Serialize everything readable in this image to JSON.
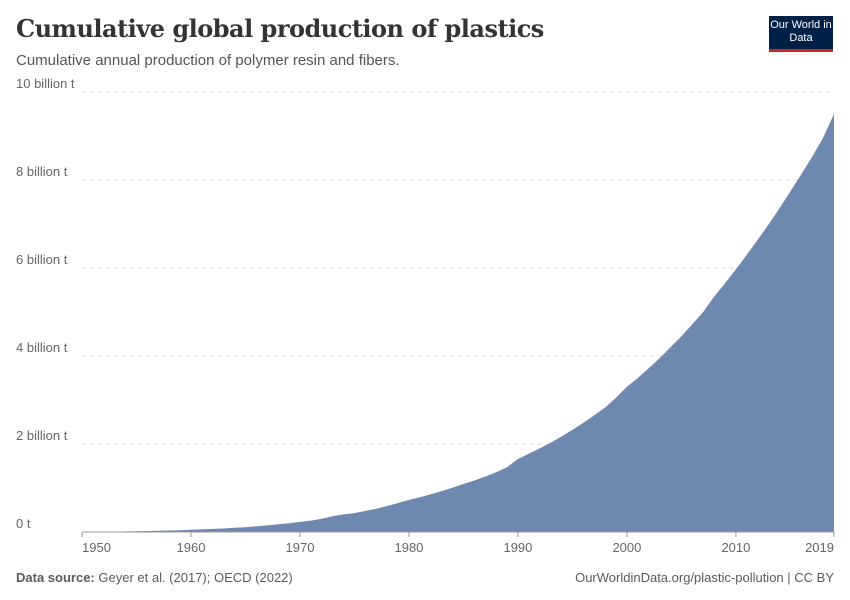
{
  "header": {
    "title": "Cumulative global production of plastics",
    "subtitle": "Cumulative annual production of polymer resin and fibers.",
    "logo_text": "Our World in Data"
  },
  "footer": {
    "source_label": "Data source:",
    "source": "Geyer et al. (2017); OECD (2022)",
    "link": "OurWorldinData.org/plastic-pollution | CC BY"
  },
  "chart_data": {
    "type": "area",
    "title": "Cumulative global production of plastics",
    "xlabel": "",
    "ylabel": "",
    "unit": "billion t",
    "xlim": [
      1950,
      2019
    ],
    "ylim": [
      0,
      10
    ],
    "grid": "horizontal dashed",
    "color": "#6f88b0",
    "y_ticks": [
      {
        "v": 0,
        "label": "0 t"
      },
      {
        "v": 2,
        "label": "2 billion t"
      },
      {
        "v": 4,
        "label": "4 billion t"
      },
      {
        "v": 6,
        "label": "6 billion t"
      },
      {
        "v": 8,
        "label": "8 billion t"
      },
      {
        "v": 10,
        "label": "10 billion t"
      }
    ],
    "x_ticks": [
      1950,
      1960,
      1970,
      1980,
      1990,
      2000,
      2010,
      2019
    ],
    "x": [
      1950,
      1951,
      1952,
      1953,
      1954,
      1955,
      1956,
      1957,
      1958,
      1959,
      1960,
      1961,
      1962,
      1963,
      1964,
      1965,
      1966,
      1967,
      1968,
      1969,
      1970,
      1971,
      1972,
      1973,
      1974,
      1975,
      1976,
      1977,
      1978,
      1979,
      1980,
      1981,
      1982,
      1983,
      1984,
      1985,
      1986,
      1987,
      1988,
      1989,
      1990,
      1991,
      1992,
      1993,
      1994,
      1995,
      1996,
      1997,
      1998,
      1999,
      2000,
      2001,
      2002,
      2003,
      2004,
      2005,
      2006,
      2007,
      2008,
      2009,
      2010,
      2011,
      2012,
      2013,
      2014,
      2015,
      2016,
      2017,
      2018,
      2019
    ],
    "values": [
      0.002,
      0.004,
      0.007,
      0.01,
      0.013,
      0.017,
      0.022,
      0.028,
      0.034,
      0.042,
      0.05,
      0.06,
      0.07,
      0.08,
      0.095,
      0.11,
      0.13,
      0.15,
      0.175,
      0.2,
      0.23,
      0.26,
      0.3,
      0.36,
      0.4,
      0.43,
      0.48,
      0.53,
      0.59,
      0.66,
      0.73,
      0.79,
      0.86,
      0.93,
      1.01,
      1.09,
      1.17,
      1.26,
      1.36,
      1.47,
      1.66,
      1.78,
      1.9,
      2.03,
      2.17,
      2.32,
      2.48,
      2.65,
      2.83,
      3.05,
      3.3,
      3.5,
      3.72,
      3.95,
      4.2,
      4.45,
      4.72,
      5.0,
      5.35,
      5.65,
      5.97,
      6.3,
      6.64,
      6.99,
      7.36,
      7.74,
      8.13,
      8.53,
      8.96,
      9.5
    ]
  }
}
